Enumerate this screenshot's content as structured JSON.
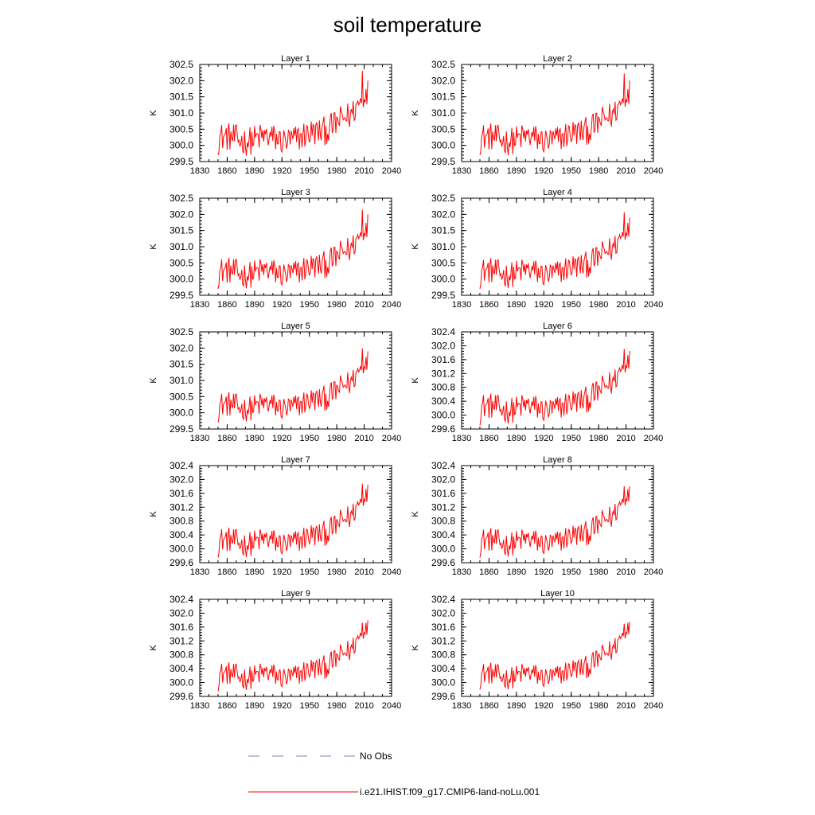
{
  "title": "soil temperature",
  "legend": [
    {
      "label": "No Obs",
      "color": "#8080c0",
      "style": "dashed"
    },
    {
      "label": "i.e21.IHIST.f09_g17.CMIP6-land-noLu.001",
      "color": "#ff0000",
      "style": "solid"
    }
  ],
  "chart_data": [
    {
      "type": "line",
      "title": "Layer 1",
      "xlabel": "",
      "ylabel": "K",
      "xlim": [
        1830,
        2040
      ],
      "ylim": [
        299.5,
        302.5
      ],
      "xticks": [
        "1830",
        "1860",
        "1890",
        "1920",
        "1950",
        "1980",
        "2010",
        "2040"
      ],
      "yticks": [
        "299.5",
        "300.0",
        "300.5",
        "301.0",
        "301.5",
        "302.0",
        "302.5"
      ],
      "series": [
        {
          "color": "#ff0000",
          "x": [
            1850,
            2014
          ],
          "values": [
            299.7,
            302.0
          ]
        }
      ]
    },
    {
      "type": "line",
      "title": "Layer 2",
      "xlabel": "",
      "ylabel": "K",
      "xlim": [
        1830,
        2040
      ],
      "ylim": [
        299.5,
        302.5
      ],
      "xticks": [
        "1830",
        "1860",
        "1890",
        "1920",
        "1950",
        "1980",
        "2010",
        "2040"
      ],
      "yticks": [
        "299.5",
        "300.0",
        "300.5",
        "301.0",
        "301.5",
        "302.0",
        "302.5"
      ],
      "series": [
        {
          "color": "#ff0000",
          "x": [
            1850,
            2014
          ],
          "values": [
            299.7,
            302.0
          ]
        }
      ]
    },
    {
      "type": "line",
      "title": "Layer 3",
      "xlabel": "",
      "ylabel": "K",
      "xlim": [
        1830,
        2040
      ],
      "ylim": [
        299.5,
        302.5
      ],
      "xticks": [
        "1830",
        "1860",
        "1890",
        "1920",
        "1950",
        "1980",
        "2010",
        "2040"
      ],
      "yticks": [
        "299.5",
        "300.0",
        "300.5",
        "301.0",
        "301.5",
        "302.0",
        "302.5"
      ],
      "series": [
        {
          "color": "#ff0000",
          "x": [
            1850,
            2014
          ],
          "values": [
            299.7,
            302.0
          ]
        }
      ]
    },
    {
      "type": "line",
      "title": "Layer 4",
      "xlabel": "",
      "ylabel": "K",
      "xlim": [
        1830,
        2040
      ],
      "ylim": [
        299.5,
        302.5
      ],
      "xticks": [
        "1830",
        "1860",
        "1890",
        "1920",
        "1950",
        "1980",
        "2010",
        "2040"
      ],
      "yticks": [
        "299.5",
        "300.0",
        "300.5",
        "301.0",
        "301.5",
        "302.0",
        "302.5"
      ],
      "series": [
        {
          "color": "#ff0000",
          "x": [
            1850,
            2014
          ],
          "values": [
            299.7,
            301.9
          ]
        }
      ]
    },
    {
      "type": "line",
      "title": "Layer 5",
      "xlabel": "",
      "ylabel": "K",
      "xlim": [
        1830,
        2040
      ],
      "ylim": [
        299.5,
        302.5
      ],
      "xticks": [
        "1830",
        "1860",
        "1890",
        "1920",
        "1950",
        "1980",
        "2010",
        "2040"
      ],
      "yticks": [
        "299.5",
        "300.0",
        "300.5",
        "301.0",
        "301.5",
        "302.0",
        "302.5"
      ],
      "series": [
        {
          "color": "#ff0000",
          "x": [
            1850,
            2014
          ],
          "values": [
            299.7,
            301.9
          ]
        }
      ]
    },
    {
      "type": "line",
      "title": "Layer 6",
      "xlabel": "",
      "ylabel": "K",
      "xlim": [
        1830,
        2040
      ],
      "ylim": [
        299.6,
        302.4
      ],
      "xticks": [
        "1830",
        "1860",
        "1890",
        "1920",
        "1950",
        "1980",
        "2010",
        "2040"
      ],
      "yticks": [
        "299.6",
        "300.0",
        "300.4",
        "300.8",
        "301.2",
        "301.6",
        "302.0",
        "302.4"
      ],
      "series": [
        {
          "color": "#ff0000",
          "x": [
            1850,
            2014
          ],
          "values": [
            299.7,
            301.85
          ]
        }
      ]
    },
    {
      "type": "line",
      "title": "Layer 7",
      "xlabel": "",
      "ylabel": "K",
      "xlim": [
        1830,
        2040
      ],
      "ylim": [
        299.6,
        302.4
      ],
      "xticks": [
        "1830",
        "1860",
        "1890",
        "1920",
        "1950",
        "1980",
        "2010",
        "2040"
      ],
      "yticks": [
        "299.6",
        "300.0",
        "300.4",
        "300.8",
        "301.2",
        "301.6",
        "302.0",
        "302.4"
      ],
      "series": [
        {
          "color": "#ff0000",
          "x": [
            1850,
            2014
          ],
          "values": [
            299.75,
            301.85
          ]
        }
      ]
    },
    {
      "type": "line",
      "title": "Layer 8",
      "xlabel": "",
      "ylabel": "K",
      "xlim": [
        1830,
        2040
      ],
      "ylim": [
        299.6,
        302.4
      ],
      "xticks": [
        "1830",
        "1860",
        "1890",
        "1920",
        "1950",
        "1980",
        "2010",
        "2040"
      ],
      "yticks": [
        "299.6",
        "300.0",
        "300.4",
        "300.8",
        "301.2",
        "301.6",
        "302.0",
        "302.4"
      ],
      "series": [
        {
          "color": "#ff0000",
          "x": [
            1850,
            2014
          ],
          "values": [
            299.75,
            301.8
          ]
        }
      ]
    },
    {
      "type": "line",
      "title": "Layer 9",
      "xlabel": "",
      "ylabel": "K",
      "xlim": [
        1830,
        2040
      ],
      "ylim": [
        299.6,
        302.4
      ],
      "xticks": [
        "1830",
        "1860",
        "1890",
        "1920",
        "1950",
        "1980",
        "2010",
        "2040"
      ],
      "yticks": [
        "299.6",
        "300.0",
        "300.4",
        "300.8",
        "301.2",
        "301.6",
        "302.0",
        "302.4"
      ],
      "series": [
        {
          "color": "#ff0000",
          "x": [
            1850,
            2014
          ],
          "values": [
            299.75,
            301.8
          ]
        }
      ]
    },
    {
      "type": "line",
      "title": "Layer 10",
      "xlabel": "",
      "ylabel": "K",
      "xlim": [
        1830,
        2040
      ],
      "ylim": [
        299.6,
        302.4
      ],
      "xticks": [
        "1830",
        "1860",
        "1890",
        "1920",
        "1950",
        "1980",
        "2010",
        "2040"
      ],
      "yticks": [
        "299.6",
        "300.0",
        "300.4",
        "300.8",
        "301.2",
        "301.6",
        "302.0",
        "302.4"
      ],
      "series": [
        {
          "color": "#ff0000",
          "x": [
            1850,
            2014
          ],
          "values": [
            299.8,
            301.75
          ]
        }
      ]
    }
  ]
}
